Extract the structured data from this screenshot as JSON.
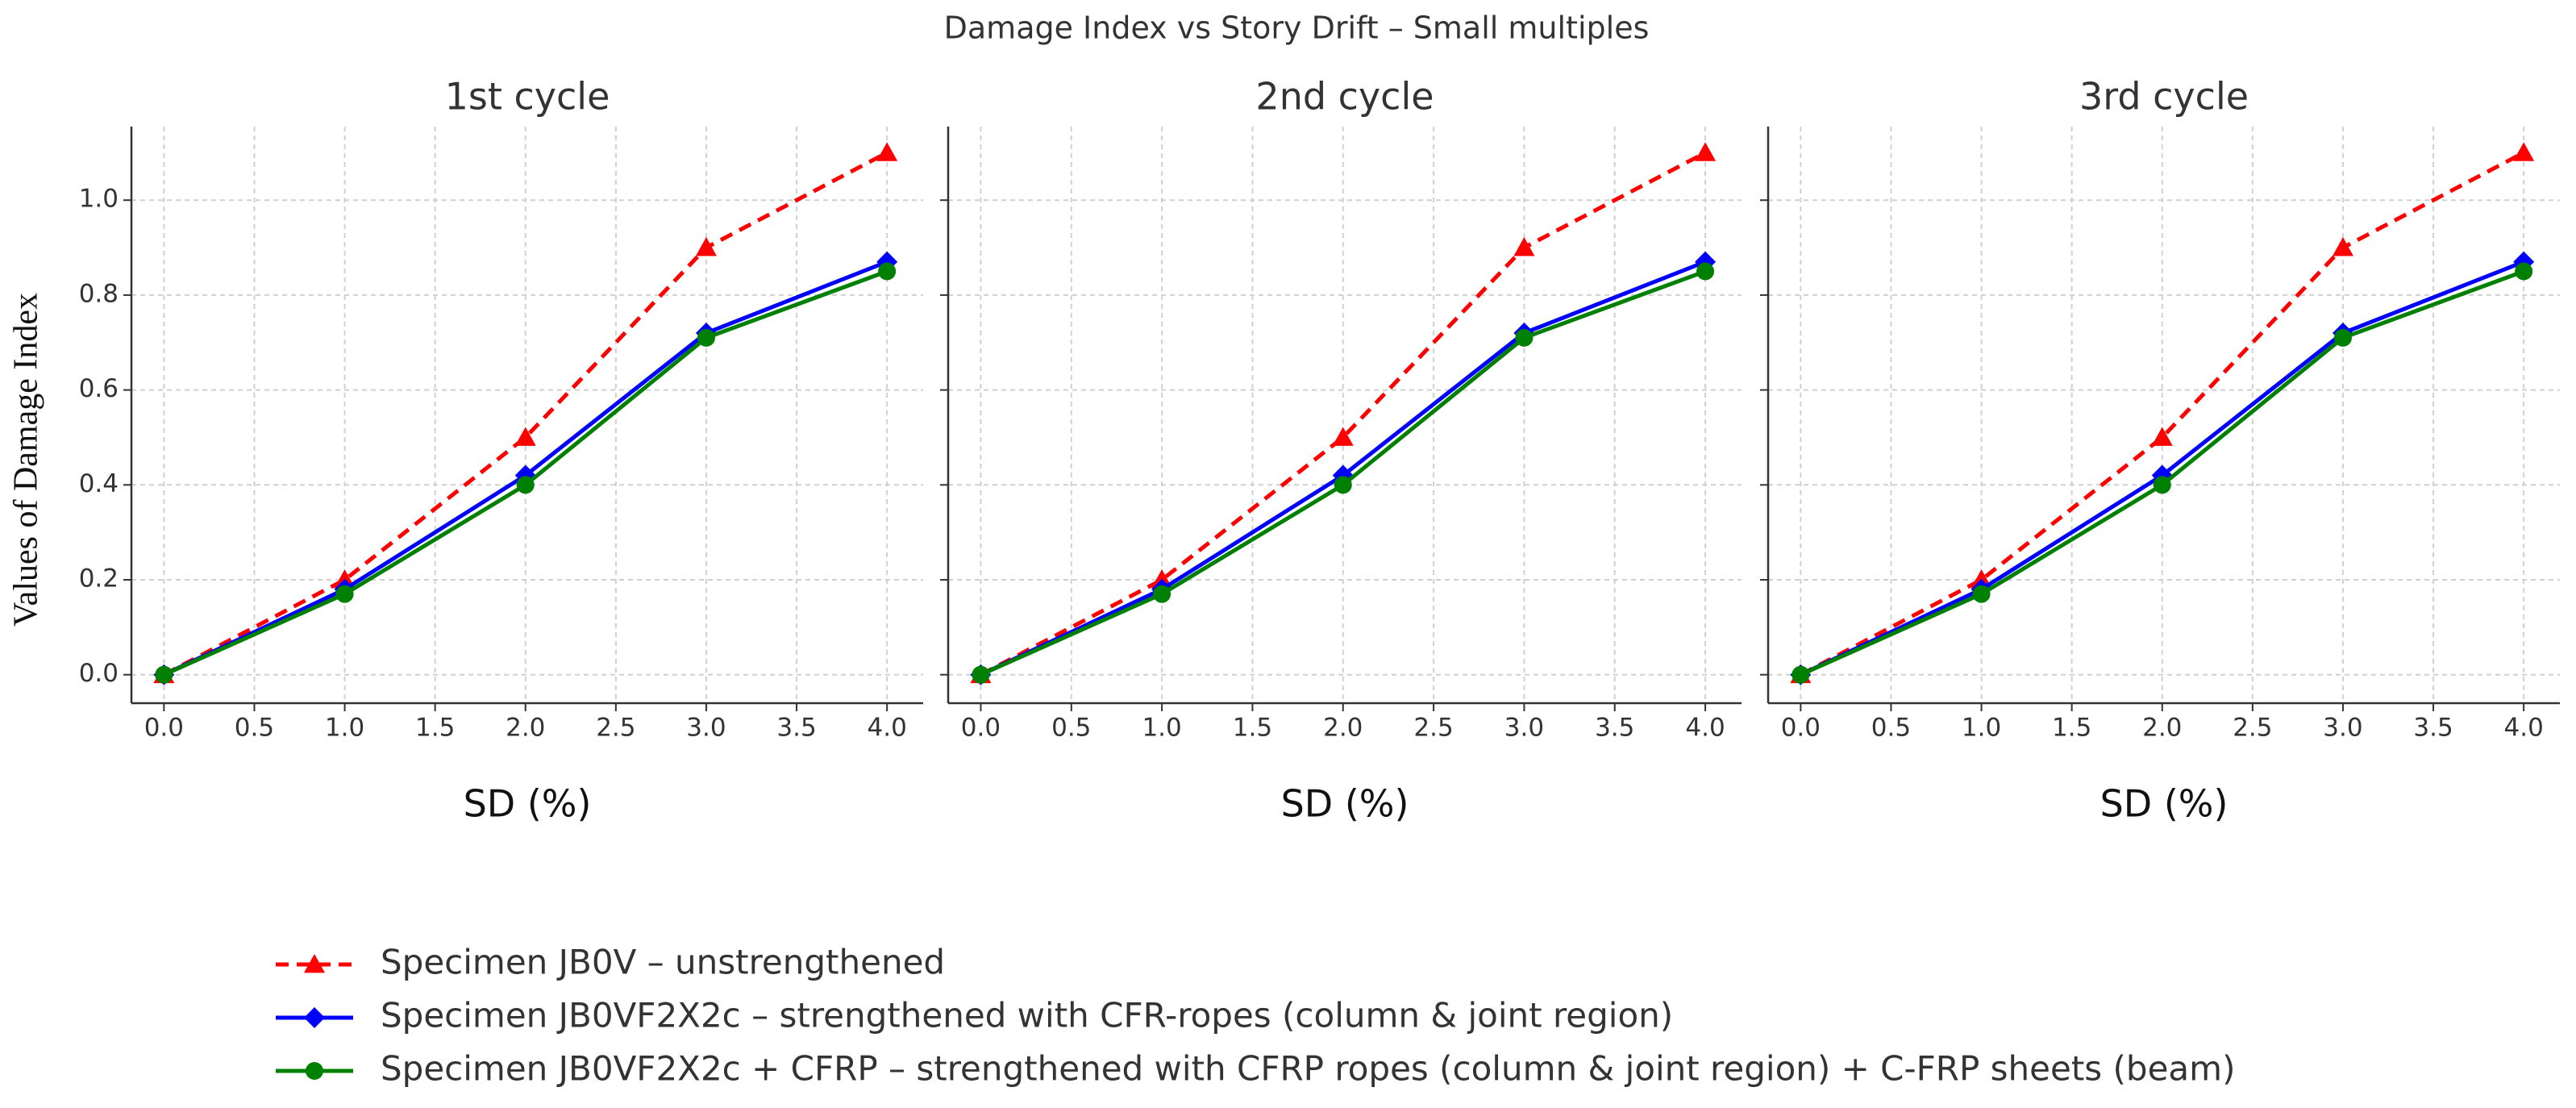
{
  "title": "Damage Index vs Story Drift – Small multiples",
  "ylabel": "Values of Damage Index",
  "legend": [
    {
      "name": "Specimen JB0V – unstrengthened",
      "color": "#ff0000",
      "marker": "triangle",
      "linestyle": "dashed"
    },
    {
      "name": "Specimen JB0VF2X2c – strengthened with CFR-ropes (column & joint region)",
      "color": "#0000ff",
      "marker": "diamond",
      "linestyle": "solid"
    },
    {
      "name": "Specimen JB0VF2X2c + CFRP – strengthened with CFRP ropes (column & joint region) + C-FRP sheets (beam)",
      "color": "#008000",
      "marker": "circle",
      "linestyle": "solid"
    }
  ],
  "chart_data": [
    {
      "type": "line",
      "title": "1st cycle",
      "xlabel": "SD (%)",
      "x": [
        0,
        1,
        2,
        3,
        4
      ],
      "series": [
        {
          "values": [
            0,
            0.2,
            0.5,
            0.9,
            1.1
          ]
        },
        {
          "values": [
            0,
            0.18,
            0.42,
            0.72,
            0.87
          ]
        },
        {
          "values": [
            0,
            0.17,
            0.4,
            0.71,
            0.85
          ]
        }
      ],
      "xlim": [
        -0.18,
        4.2
      ],
      "ylim": [
        -0.06,
        1.155
      ],
      "xticks": [
        {
          "value": 0,
          "label": "0.0"
        },
        {
          "value": 0.5,
          "label": "0.5"
        },
        {
          "value": 1,
          "label": "1.0"
        },
        {
          "value": 1.5,
          "label": "1.5"
        },
        {
          "value": 2,
          "label": "2.0"
        },
        {
          "value": 2.5,
          "label": "2.5"
        },
        {
          "value": 3,
          "label": "3.0"
        },
        {
          "value": 3.5,
          "label": "3.5"
        },
        {
          "value": 4,
          "label": "4.0"
        }
      ],
      "yticks": [
        {
          "value": 0,
          "label": "0.0"
        },
        {
          "value": 0.2,
          "label": "0.2"
        },
        {
          "value": 0.4,
          "label": "0.4"
        },
        {
          "value": 0.6,
          "label": "0.6"
        },
        {
          "value": 0.8,
          "label": "0.8"
        },
        {
          "value": 1,
          "label": "1.0"
        }
      ],
      "grid": true
    },
    {
      "type": "line",
      "title": "2nd cycle",
      "xlabel": "SD (%)",
      "x": [
        0,
        1,
        2,
        3,
        4
      ],
      "series": [
        {
          "values": [
            0,
            0.2,
            0.5,
            0.9,
            1.1
          ]
        },
        {
          "values": [
            0,
            0.18,
            0.42,
            0.72,
            0.87
          ]
        },
        {
          "values": [
            0,
            0.17,
            0.4,
            0.71,
            0.85
          ]
        }
      ],
      "xlim": [
        -0.18,
        4.2
      ],
      "ylim": [
        -0.06,
        1.155
      ],
      "xticks": [
        {
          "value": 0,
          "label": "0.0"
        },
        {
          "value": 0.5,
          "label": "0.5"
        },
        {
          "value": 1,
          "label": "1.0"
        },
        {
          "value": 1.5,
          "label": "1.5"
        },
        {
          "value": 2,
          "label": "2.0"
        },
        {
          "value": 2.5,
          "label": "2.5"
        },
        {
          "value": 3,
          "label": "3.0"
        },
        {
          "value": 3.5,
          "label": "3.5"
        },
        {
          "value": 4,
          "label": "4.0"
        }
      ],
      "yticks": [
        0,
        0.2,
        0.4,
        0.6,
        0.8,
        1
      ],
      "grid": true
    },
    {
      "type": "line",
      "title": "3rd cycle",
      "xlabel": "SD (%)",
      "x": [
        0,
        1,
        2,
        3,
        4
      ],
      "series": [
        {
          "values": [
            0,
            0.2,
            0.5,
            0.9,
            1.1
          ]
        },
        {
          "values": [
            0,
            0.18,
            0.42,
            0.72,
            0.87
          ]
        },
        {
          "values": [
            0,
            0.17,
            0.4,
            0.71,
            0.85
          ]
        }
      ],
      "xlim": [
        -0.18,
        4.2
      ],
      "ylim": [
        -0.06,
        1.155
      ],
      "xticks": [
        {
          "value": 0,
          "label": "0.0"
        },
        {
          "value": 0.5,
          "label": "0.5"
        },
        {
          "value": 1,
          "label": "1.0"
        },
        {
          "value": 1.5,
          "label": "1.5"
        },
        {
          "value": 2,
          "label": "2.0"
        },
        {
          "value": 2.5,
          "label": "2.5"
        },
        {
          "value": 3,
          "label": "3.0"
        },
        {
          "value": 3.5,
          "label": "3.5"
        },
        {
          "value": 4,
          "label": "4.0"
        }
      ],
      "yticks": [
        0,
        0.2,
        0.4,
        0.6,
        0.8,
        1
      ],
      "grid": true
    }
  ]
}
